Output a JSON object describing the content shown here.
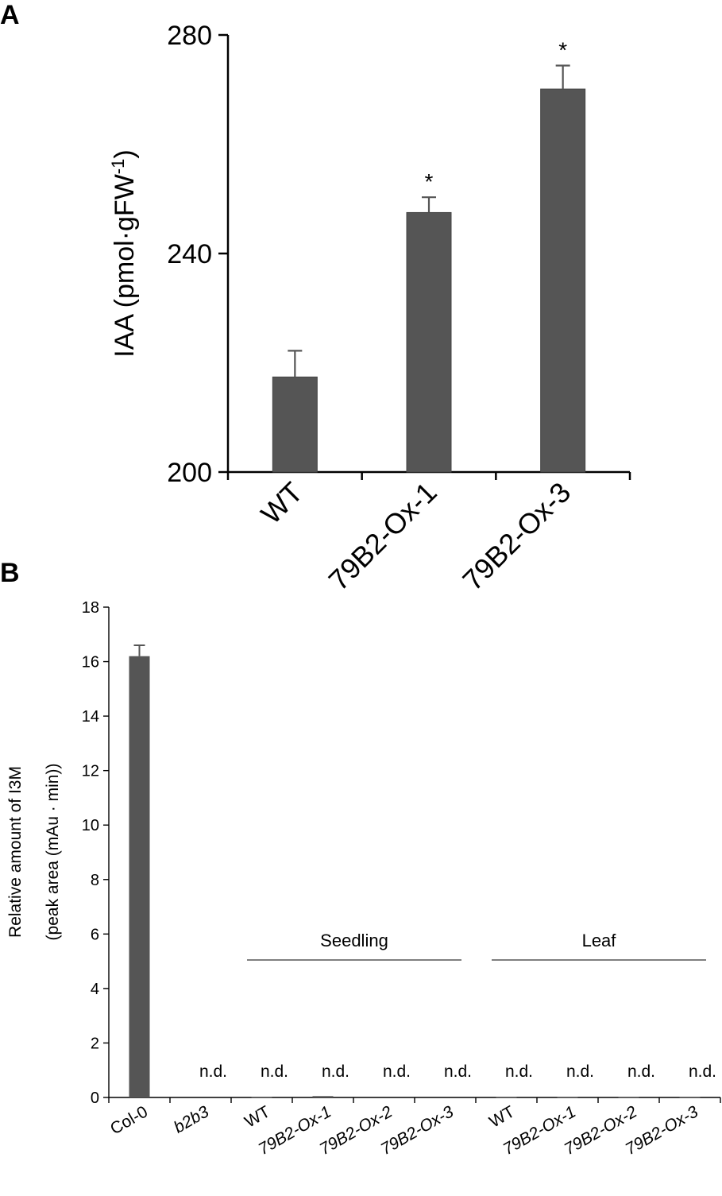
{
  "panels": [
    {
      "label": "A"
    },
    {
      "label": "B"
    }
  ],
  "chart_data": [
    {
      "panel": "A",
      "type": "bar",
      "categories": [
        "WT",
        "79B2-Ox-1",
        "79B2-Ox-3"
      ],
      "values": [
        217.4,
        247.5,
        270.1
      ],
      "errors": [
        4.8,
        2.8,
        4.3
      ],
      "significance": [
        "",
        "*",
        "*"
      ],
      "ylabel": "IAA (pmol·gFW",
      "ylabel_sup": "-1",
      "ylabel_end": ")",
      "ylim": [
        200,
        280
      ],
      "yticks": [
        200,
        240,
        280
      ],
      "bar_color": "#555555"
    },
    {
      "panel": "B",
      "type": "bar",
      "categories": [
        "Col-0",
        "b2b3",
        "WT",
        "79B2-Ox-1",
        "79B2-Ox-2",
        "79B2-Ox-3",
        "WT",
        "79B2-Ox-1",
        "79B2-Ox-2",
        "79B2-Ox-3"
      ],
      "category_italic": [
        false,
        true,
        false,
        true,
        true,
        true,
        false,
        true,
        true,
        true
      ],
      "values": [
        16.2,
        0,
        0.02,
        0.05,
        0,
        0,
        0.02,
        0.02,
        0.02,
        0.02
      ],
      "errors": [
        0.4,
        0,
        0,
        0,
        0,
        0,
        0,
        0,
        0,
        0
      ],
      "annotations": [
        "",
        "n.d.",
        "n.d.",
        "n.d.",
        "n.d.",
        "n.d.",
        "n.d.",
        "n.d.",
        "n.d.",
        "n.d."
      ],
      "groups": [
        {
          "label": "Seedling",
          "from": 2,
          "to": 5
        },
        {
          "label": "Leaf",
          "from": 6,
          "to": 9
        }
      ],
      "ylabel_line1": "Relative amount of I3M",
      "ylabel_line2": "(peak area (mAu · min))",
      "ylim": [
        0,
        18
      ],
      "yticks": [
        0,
        2,
        4,
        6,
        8,
        10,
        12,
        14,
        16,
        18
      ],
      "bar_color": "#555555"
    }
  ]
}
